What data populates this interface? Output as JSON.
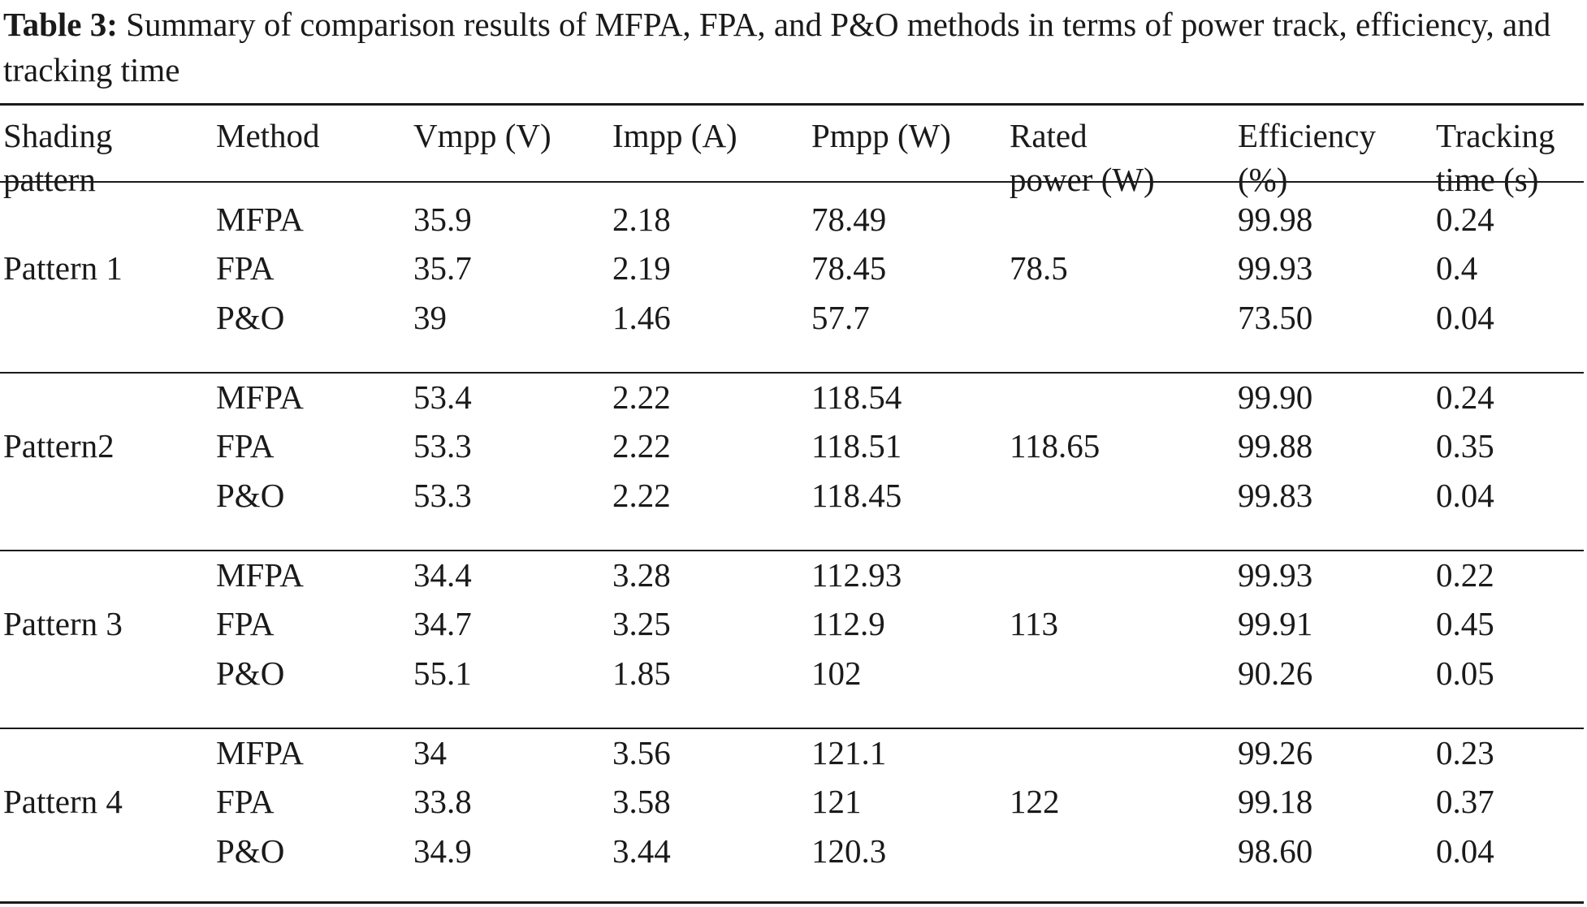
{
  "caption": {
    "label": "Table 3:",
    "text": "Summary of comparison results of MFPA, FPA, and P&O methods in terms of power track, efficiency, and tracking time"
  },
  "table": {
    "columns": [
      {
        "line1": "Shading",
        "line2": "pattern"
      },
      {
        "line1": "Method",
        "line2": ""
      },
      {
        "line1": "Vmpp (V)",
        "line2": ""
      },
      {
        "line1": "Impp (A)",
        "line2": ""
      },
      {
        "line1": "Pmpp (W)",
        "line2": ""
      },
      {
        "line1": "Rated",
        "line2": "power (W)"
      },
      {
        "line1": "Efficiency",
        "line2": "(%)"
      },
      {
        "line1": "Tracking",
        "line2": "time (s)"
      }
    ],
    "groups": [
      {
        "pattern": "Pattern 1",
        "rated_power": "78.5",
        "rows": [
          {
            "method": "MFPA",
            "vmpp": "35.9",
            "impp": "2.18",
            "pmpp": "78.49",
            "efficiency": "99.98",
            "time": "0.24"
          },
          {
            "method": "FPA",
            "vmpp": "35.7",
            "impp": "2.19",
            "pmpp": "78.45",
            "efficiency": "99.93",
            "time": "0.4"
          },
          {
            "method": "P&O",
            "vmpp": "39",
            "impp": "1.46",
            "pmpp": "57.7",
            "efficiency": "73.50",
            "time": "0.04"
          }
        ]
      },
      {
        "pattern": "Pattern2",
        "rated_power": "118.65",
        "rows": [
          {
            "method": "MFPA",
            "vmpp": "53.4",
            "impp": "2.22",
            "pmpp": "118.54",
            "efficiency": "99.90",
            "time": "0.24"
          },
          {
            "method": "FPA",
            "vmpp": "53.3",
            "impp": "2.22",
            "pmpp": "118.51",
            "efficiency": "99.88",
            "time": "0.35"
          },
          {
            "method": "P&O",
            "vmpp": "53.3",
            "impp": "2.22",
            "pmpp": "118.45",
            "efficiency": "99.83",
            "time": "0.04"
          }
        ]
      },
      {
        "pattern": "Pattern 3",
        "rated_power": "113",
        "rows": [
          {
            "method": "MFPA",
            "vmpp": "34.4",
            "impp": "3.28",
            "pmpp": "112.93",
            "efficiency": "99.93",
            "time": "0.22"
          },
          {
            "method": "FPA",
            "vmpp": "34.7",
            "impp": "3.25",
            "pmpp": "112.9",
            "efficiency": "99.91",
            "time": "0.45"
          },
          {
            "method": "P&O",
            "vmpp": "55.1",
            "impp": "1.85",
            "pmpp": "102",
            "efficiency": "90.26",
            "time": "0.05"
          }
        ]
      },
      {
        "pattern": "Pattern 4",
        "rated_power": "122",
        "rows": [
          {
            "method": "MFPA",
            "vmpp": "34",
            "impp": "3.56",
            "pmpp": "121.1",
            "efficiency": "99.26",
            "time": "0.23"
          },
          {
            "method": "FPA",
            "vmpp": "33.8",
            "impp": "3.58",
            "pmpp": "121",
            "efficiency": "99.18",
            "time": "0.37"
          },
          {
            "method": "P&O",
            "vmpp": "34.9",
            "impp": "3.44",
            "pmpp": "120.3",
            "efficiency": "98.60",
            "time": "0.04"
          }
        ]
      }
    ]
  }
}
